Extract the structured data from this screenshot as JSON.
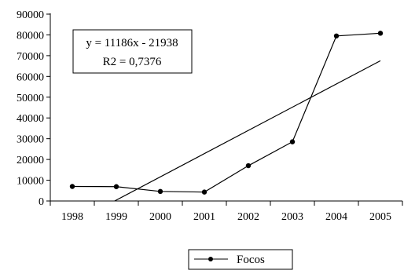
{
  "chart_data": {
    "type": "line",
    "x": [
      "1998",
      "1999",
      "2000",
      "2001",
      "2002",
      "2003",
      "2004",
      "2005"
    ],
    "series": [
      {
        "name": "Focos",
        "values": [
          7000,
          6900,
          4600,
          4300,
          17000,
          28500,
          79500,
          80800
        ],
        "color": "#000000",
        "marker": "circle"
      }
    ],
    "trendline": {
      "type": "linear",
      "slope": 11186,
      "intercept": -21938,
      "equation_label": "y = 11186x - 21938",
      "r2_label": "R2 = 0,7376"
    },
    "ylim": [
      0,
      90000
    ],
    "yticks": [
      "0",
      "10000",
      "20000",
      "30000",
      "40000",
      "50000",
      "60000",
      "70000",
      "80000",
      "90000"
    ],
    "grid": false,
    "legend_position": "bottom-center",
    "title": "",
    "xlabel": "",
    "ylabel": ""
  }
}
